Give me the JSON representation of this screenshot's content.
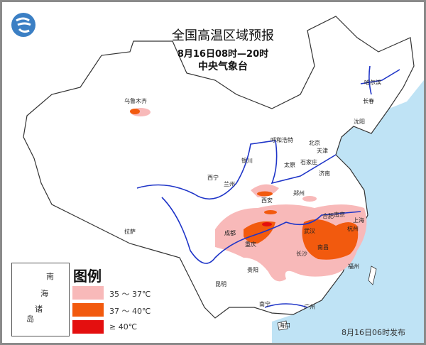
{
  "header": {
    "title": "全国高温区域预报",
    "period": "8月16日08时—20时",
    "issuer": "中央气象台"
  },
  "logo": {
    "name": "cma-logo-icon"
  },
  "legend": {
    "title": "图例",
    "items": [
      {
        "label": "35 ～ 37℃",
        "color": "#f8b9b9"
      },
      {
        "label": "37 ～ 40℃",
        "color": "#f25a0e"
      },
      {
        "label": "≥ 40℃",
        "color": "#e40f0f"
      }
    ]
  },
  "inset": {
    "label_chars": [
      "南",
      "海",
      "诸",
      "岛"
    ]
  },
  "issued": "8月16日06时发布",
  "cities": [
    {
      "name": "乌鲁木齐"
    },
    {
      "name": "拉萨"
    },
    {
      "name": "西宁"
    },
    {
      "name": "兰州"
    },
    {
      "name": "银川"
    },
    {
      "name": "呼和浩特"
    },
    {
      "name": "太原"
    },
    {
      "name": "石家庄"
    },
    {
      "name": "北京"
    },
    {
      "name": "天津"
    },
    {
      "name": "济南"
    },
    {
      "name": "郑州"
    },
    {
      "name": "西安"
    },
    {
      "name": "成都"
    },
    {
      "name": "重庆"
    },
    {
      "name": "贵阳"
    },
    {
      "name": "昆明"
    },
    {
      "name": "南宁"
    },
    {
      "name": "长沙"
    },
    {
      "name": "武汉"
    },
    {
      "name": "南昌"
    },
    {
      "name": "合肥"
    },
    {
      "name": "南京"
    },
    {
      "name": "上海"
    },
    {
      "name": "杭州"
    },
    {
      "name": "福州"
    },
    {
      "name": "广州"
    },
    {
      "name": "海口"
    },
    {
      "name": "哈尔滨"
    },
    {
      "name": "长春"
    },
    {
      "name": "沈阳"
    }
  ],
  "colors": {
    "sea": "#bfe3f5",
    "river": "#1f35c8",
    "border": "#333333",
    "frame": "#8a8a8a"
  }
}
